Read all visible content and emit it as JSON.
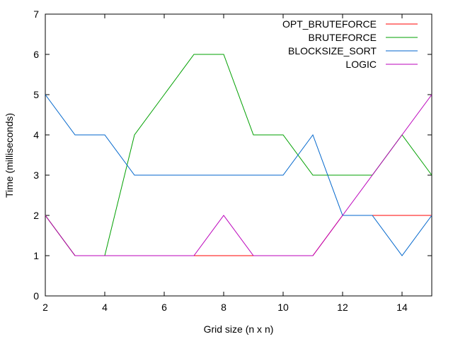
{
  "chart_data": {
    "type": "line",
    "title": "",
    "xlabel": "Grid size (n x n)",
    "ylabel": "Time (milliseconds)",
    "xlim": [
      2,
      15
    ],
    "ylim": [
      0,
      7
    ],
    "xticks": [
      2,
      4,
      6,
      8,
      10,
      12,
      14
    ],
    "yticks": [
      0,
      1,
      2,
      3,
      4,
      5,
      6,
      7
    ],
    "grid": false,
    "legend_position": "top-right",
    "x": [
      2,
      3,
      4,
      5,
      6,
      7,
      8,
      9,
      10,
      11,
      12,
      13,
      14,
      15
    ],
    "series": [
      {
        "name": "OPT_BRUTEFORCE",
        "color": "#ff0000",
        "values": [
          2,
          1,
          1,
          1,
          1,
          1,
          1,
          1,
          1,
          1,
          2,
          2,
          2,
          2
        ]
      },
      {
        "name": "BRUTEFORCE",
        "color": "#00a000",
        "values": [
          2,
          1,
          1,
          4,
          5,
          6,
          6,
          4,
          4,
          3,
          3,
          3,
          4,
          3
        ]
      },
      {
        "name": "BLOCKSIZE_SORT",
        "color": "#0066cc",
        "values": [
          5,
          4,
          4,
          3,
          3,
          3,
          3,
          3,
          3,
          4,
          2,
          2,
          1,
          2
        ]
      },
      {
        "name": "LOGIC",
        "color": "#bb00bb",
        "values": [
          2,
          1,
          1,
          1,
          1,
          1,
          2,
          1,
          1,
          1,
          2,
          3,
          4,
          5
        ]
      }
    ]
  }
}
